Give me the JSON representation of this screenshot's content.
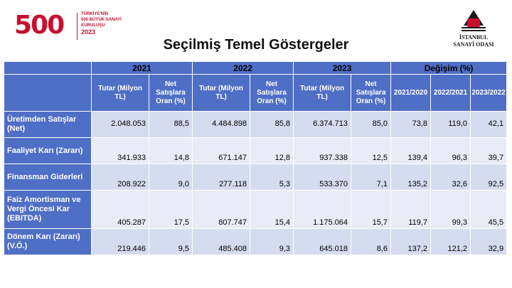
{
  "logo_left": {
    "number": "500",
    "line1": "TÜRKİYE'NİN",
    "line2": "500 BÜYÜK SANAYİ",
    "line3": "KURULUŞU",
    "year": "2023"
  },
  "logo_right": {
    "line1": "İSTANBUL",
    "line2": "SANAYİ ODASI"
  },
  "title": "Seçilmiş Temel Göstergeler",
  "header": {
    "year_groups": [
      "2021",
      "2022",
      "2023"
    ],
    "change_group": "Değişim (%)",
    "tutar": "Tutar (Milyon TL)",
    "oran": "Net Satışlara Oran (%)",
    "change_cols": [
      "2021/2020",
      "2022/2021",
      "2023/2022"
    ]
  },
  "rows": [
    {
      "label": "Üretimden Satışlar (Net)",
      "v2021": "2.048.053",
      "p2021": "88,5",
      "v2022": "4.484.898",
      "p2022": "85,8",
      "v2023": "6.374.713",
      "p2023": "85,0",
      "c1": "73,8",
      "c2": "119,0",
      "c3": "42,1"
    },
    {
      "label": "Faaliyet Karı (Zararı)",
      "v2021": "341.933",
      "p2021": "14,8",
      "v2022": "671.147",
      "p2022": "12,8",
      "v2023": "937.338",
      "p2023": "12,5",
      "c1": "139,4",
      "c2": "96,3",
      "c3": "39,7"
    },
    {
      "label": "Finansman Giderleri",
      "v2021": "208.922",
      "p2021": "9,0",
      "v2022": "277.118",
      "p2022": "5,3",
      "v2023": "533.370",
      "p2023": "7,1",
      "c1": "135,2",
      "c2": "32,6",
      "c3": "92,5"
    },
    {
      "label": "Faiz Amortisman ve Vergi Öncesi Kar (EBITDA)",
      "v2021": "405.287",
      "p2021": "17,5",
      "v2022": "807.747",
      "p2022": "15,4",
      "v2023": "1.175.064",
      "p2023": "15,7",
      "c1": "119,7",
      "c2": "99,3",
      "c3": "45,5"
    },
    {
      "label": "Dönem Karı (Zararı) (V.Ö.)",
      "v2021": "219.446",
      "p2021": "9,5",
      "v2022": "485.408",
      "p2022": "9,3",
      "v2023": "645.018",
      "p2023": "8,6",
      "c1": "137,2",
      "c2": "121,2",
      "c3": "32,9"
    }
  ]
}
